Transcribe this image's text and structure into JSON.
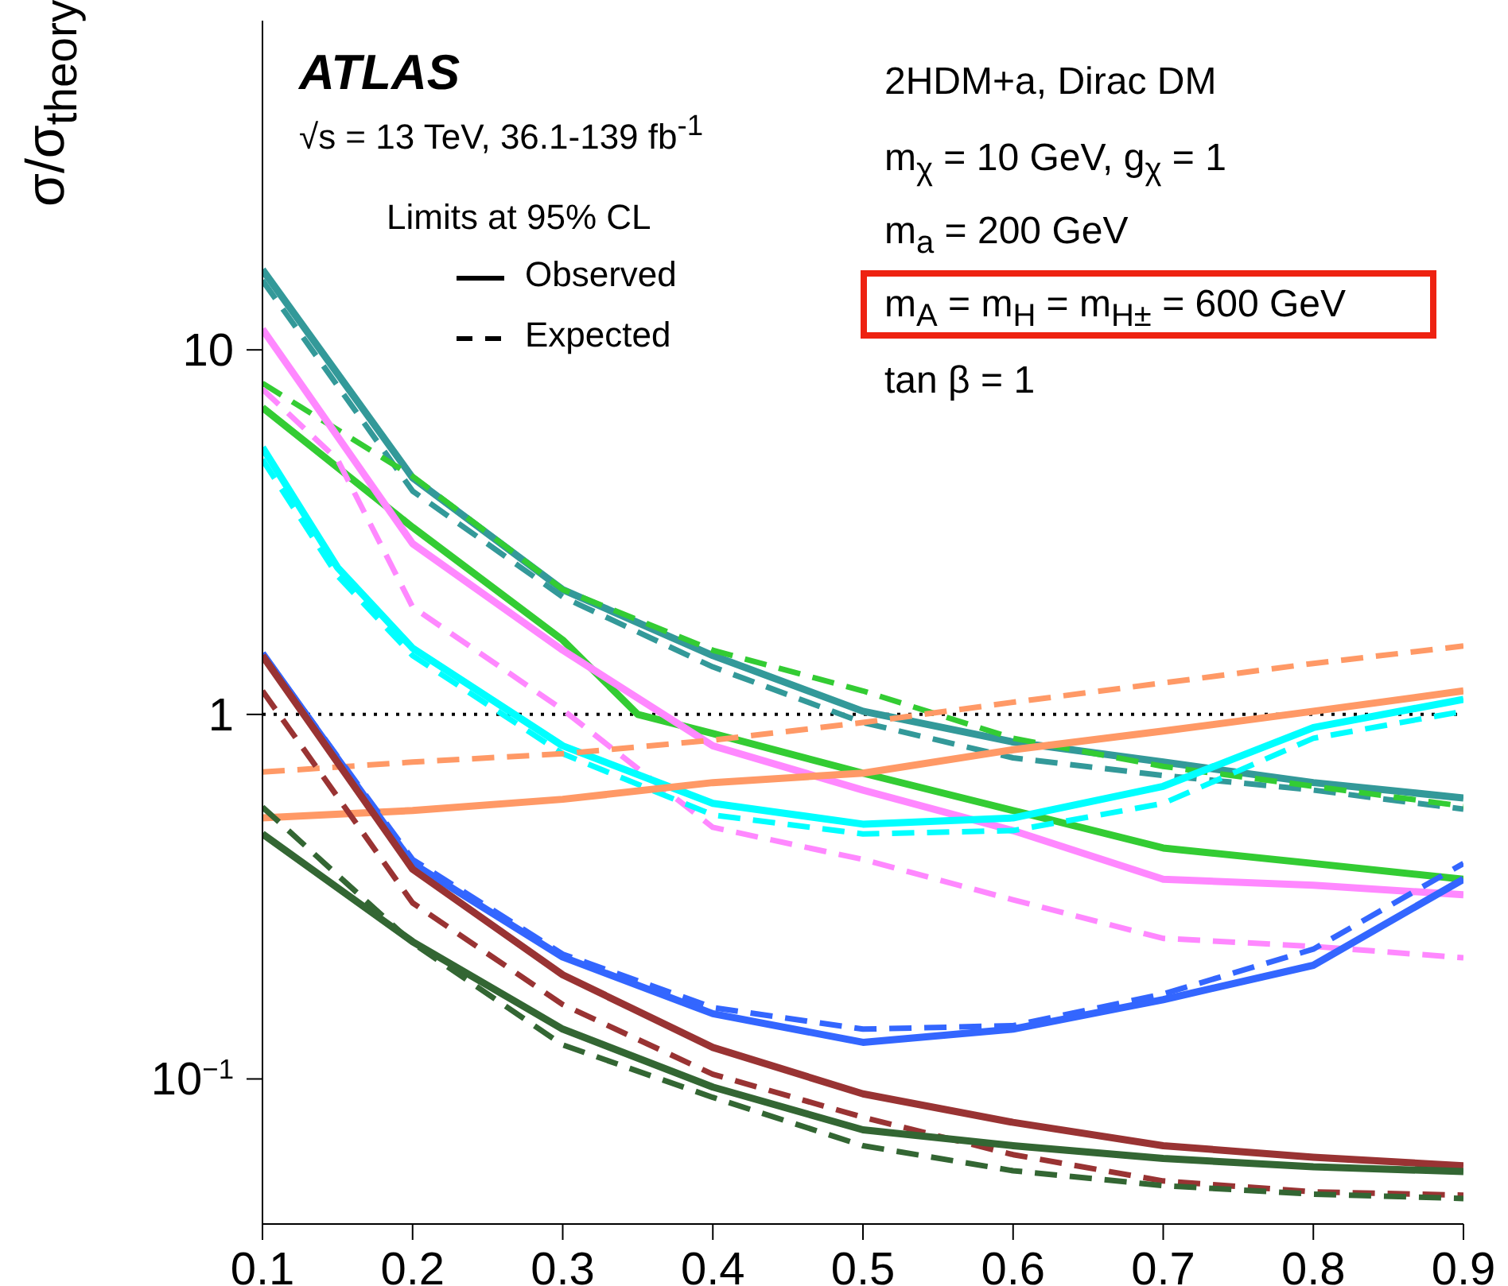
{
  "chart_data": {
    "type": "line",
    "ylabel": "σ/σ$_{theory}$",
    "legend_title": "Limits at 95% CL",
    "annotations": [
      "ATLAS",
      "√s = 13 TeV, 36.1-139 fb$^{-1}$",
      "Observed",
      "Expected",
      "2HDM+a, Dirac DM",
      "m$_{χ}$ = 10 GeV, g$_{χ}$ = 1",
      "m$_{a}$ = 200 GeV",
      "m$_{A}$ = m$_{H}$ = m$_{H±}$ = 600 GeV",
      "tan β = 1"
    ],
    "log": "y",
    "xlim": [
      0.1,
      0.9
    ],
    "xticks": [
      0.1,
      0.2,
      0.3,
      0.4,
      0.5,
      0.6,
      0.7,
      0.8,
      0.9
    ],
    "ylim": [
      0.04,
      80
    ],
    "yticks": [
      {
        "value": 0.1,
        "label": "10$^{−1}$"
      },
      1,
      10
    ],
    "ref_lines": [
      {
        "axis": "y",
        "value": 1,
        "color": "#000000",
        "line_style": "dotted"
      }
    ],
    "x": [
      0.1,
      0.2,
      0.3,
      0.4,
      0.5,
      0.6,
      0.7,
      0.8,
      0.9
    ],
    "series": [
      {
        "color": "#339999",
        "line_style": "solid",
        "values": [
          16.6,
          4.46,
          2.2,
          1.45,
          1.02,
          0.84,
          0.74,
          0.65,
          0.59
        ]
      },
      {
        "color": "#339999",
        "line_style": "dashed",
        "values": [
          15.5,
          4.1,
          2.1,
          1.35,
          0.95,
          0.76,
          0.68,
          0.62,
          0.55
        ]
      },
      {
        "color": "#33cc33",
        "line_style": "solid",
        "x": [
          0.1,
          0.2,
          0.3,
          0.35,
          0.4,
          0.5,
          0.6,
          0.7,
          0.8,
          0.9
        ],
        "values": [
          6.95,
          3.26,
          1.6,
          1.0,
          0.886,
          0.69,
          0.545,
          0.43,
          0.39,
          0.353
        ]
      },
      {
        "color": "#33cc33",
        "line_style": "dashed",
        "values": [
          8.1,
          4.5,
          2.2,
          1.5,
          1.16,
          0.86,
          0.72,
          0.635,
          0.56
        ]
      },
      {
        "color": "#ff88ff",
        "line_style": "solid",
        "values": [
          11.4,
          2.94,
          1.5,
          0.82,
          0.62,
          0.48,
          0.353,
          0.34,
          0.32
        ]
      },
      {
        "color": "#ff88ff",
        "line_style": "dashed",
        "x": [
          0.1,
          0.15,
          0.2,
          0.3,
          0.4,
          0.5,
          0.6,
          0.7,
          0.8,
          0.9
        ],
        "values": [
          7.8,
          5.0,
          1.97,
          1.03,
          0.49,
          0.4,
          0.31,
          0.243,
          0.231,
          0.215
        ]
      },
      {
        "color": "#00ffff",
        "line_style": "solid",
        "x": [
          0.1,
          0.15,
          0.2,
          0.3,
          0.4,
          0.5,
          0.6,
          0.7,
          0.8,
          0.9
        ],
        "values": [
          5.4,
          2.53,
          1.52,
          0.82,
          0.57,
          0.5,
          0.52,
          0.635,
          0.92,
          1.1
        ]
      },
      {
        "color": "#00ffff",
        "line_style": "dashed",
        "x": [
          0.1,
          0.15,
          0.2,
          0.3,
          0.4,
          0.5,
          0.6,
          0.7,
          0.8,
          0.9
        ],
        "values": [
          5.0,
          2.4,
          1.45,
          0.78,
          0.53,
          0.47,
          0.48,
          0.57,
          0.86,
          1.02
        ]
      },
      {
        "color": "#ff9966",
        "line_style": "solid",
        "values": [
          0.52,
          0.545,
          0.585,
          0.65,
          0.69,
          0.8,
          0.9,
          1.02,
          1.16
        ]
      },
      {
        "color": "#ff9966",
        "line_style": "dashed",
        "values": [
          0.695,
          0.74,
          0.78,
          0.85,
          0.95,
          1.08,
          1.22,
          1.38,
          1.54
        ]
      },
      {
        "color": "#3366ff",
        "line_style": "solid",
        "values": [
          1.47,
          0.39,
          0.216,
          0.151,
          0.126,
          0.137,
          0.165,
          0.205,
          0.353
        ]
      },
      {
        "color": "#3366ff",
        "line_style": "dashed",
        "values": [
          1.47,
          0.4,
          0.22,
          0.157,
          0.137,
          0.14,
          0.171,
          0.227,
          0.39
        ]
      },
      {
        "color": "#993333",
        "line_style": "solid",
        "values": [
          1.45,
          0.376,
          0.193,
          0.122,
          0.091,
          0.076,
          0.0656,
          0.061,
          0.0578
        ]
      },
      {
        "color": "#993333",
        "line_style": "dashed",
        "values": [
          1.16,
          0.304,
          0.16,
          0.103,
          0.0785,
          0.062,
          0.0525,
          0.049,
          0.048
        ]
      },
      {
        "color": "#336633",
        "line_style": "solid",
        "values": [
          0.47,
          0.238,
          0.137,
          0.095,
          0.0725,
          0.0656,
          0.0605,
          0.0574,
          0.0557
        ]
      },
      {
        "color": "#336633",
        "line_style": "dashed",
        "values": [
          0.557,
          0.236,
          0.124,
          0.089,
          0.0656,
          0.056,
          0.051,
          0.0483,
          0.047
        ]
      }
    ]
  }
}
